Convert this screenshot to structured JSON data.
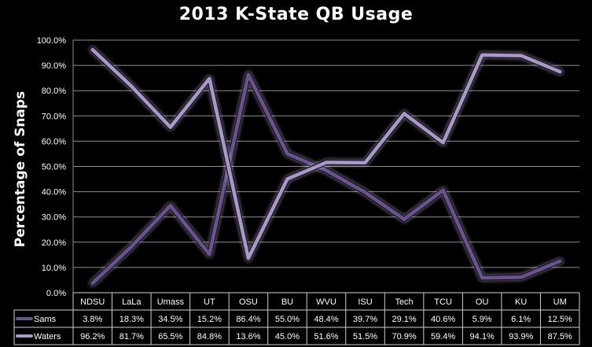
{
  "chart_data": {
    "type": "line",
    "title": "2013 K-State QB Usage",
    "xlabel": "",
    "ylabel": "Percentage of Snaps",
    "ylim": [
      0,
      100
    ],
    "y_ticks": [
      "0.0%",
      "10.0%",
      "20.0%",
      "30.0%",
      "40.0%",
      "50.0%",
      "60.0%",
      "70.0%",
      "80.0%",
      "90.0%",
      "100.0%"
    ],
    "grid": "horizontal",
    "legend": "data-table",
    "categories": [
      "NDSU",
      "LaLa",
      "Umass",
      "UT",
      "OSU",
      "BU",
      "WVU",
      "ISU",
      "Tech",
      "TCU",
      "OU",
      "KU",
      "UM"
    ],
    "series": [
      {
        "name": "Sams",
        "color": "#6a5490",
        "values": [
          3.8,
          18.3,
          34.5,
          15.2,
          86.4,
          55.0,
          48.4,
          39.7,
          29.1,
          40.6,
          5.9,
          6.1,
          12.5
        ],
        "labels": [
          "3.8%",
          "18.3%",
          "34.5%",
          "15.2%",
          "86.4%",
          "55.0%",
          "48.4%",
          "39.7%",
          "29.1%",
          "40.6%",
          "5.9%",
          "6.1%",
          "12.5%"
        ]
      },
      {
        "name": "Waters",
        "color": "#a899c9",
        "values": [
          96.2,
          81.7,
          65.5,
          84.8,
          13.6,
          45.0,
          51.6,
          51.5,
          70.9,
          59.4,
          94.1,
          93.9,
          87.5
        ],
        "labels": [
          "96.2%",
          "81.7%",
          "65.5%",
          "84.8%",
          "13.6%",
          "45.0%",
          "51.6%",
          "51.5%",
          "70.9%",
          "59.4%",
          "94.1%",
          "93.9%",
          "87.5%"
        ]
      }
    ]
  }
}
